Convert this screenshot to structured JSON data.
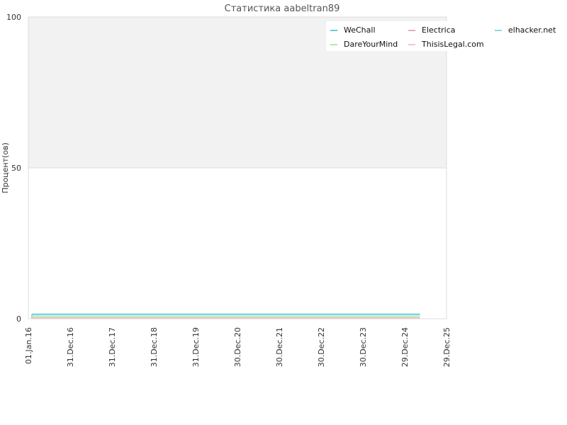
{
  "chart_data": {
    "type": "line",
    "title": "Статистика aabeltran89",
    "ylabel": "Процент(ов)",
    "xlabel": "",
    "ylim": [
      0,
      100
    ],
    "y_ticks": [
      "0",
      "50",
      "100"
    ],
    "x_ticks": [
      "01.Jan.16",
      "31.Dec.16",
      "31.Dec.17",
      "31.Dec.18",
      "31.Dec.19",
      "30.Dec.20",
      "30.Dec.21",
      "30.Dec.22",
      "30.Dec.23",
      "29.Dec.24",
      "29.Dec.25"
    ],
    "x_range": [
      "01.Jan.16",
      "29.Dec.25"
    ],
    "grid": true,
    "legend_position": "top-right",
    "band_above_50_color": "#f2f2f2",
    "series": [
      {
        "name": "WeChall",
        "color": "#66cccc",
        "x": [
          "01.Jan.16",
          "10.Apr.25"
        ],
        "y": [
          1.5,
          1.5
        ]
      },
      {
        "name": "Electrica",
        "color": "#e6a8c8",
        "x": [
          "01.Jan.16",
          "10.Apr.25"
        ],
        "y": [
          0.3,
          0.3
        ]
      },
      {
        "name": "elhacker.net",
        "color": "#88dddd",
        "x": [
          "01.Jan.16",
          "10.Apr.25"
        ],
        "y": [
          1.3,
          1.3
        ]
      },
      {
        "name": "DareYourMind",
        "color": "#b8e6a0",
        "x": [
          "01.Jan.16",
          "10.Apr.25"
        ],
        "y": [
          0.6,
          0.6
        ]
      },
      {
        "name": "ThisisLegal.com",
        "color": "#f2c4d0",
        "x": [
          "01.Jan.16",
          "10.Apr.25"
        ],
        "y": [
          0.2,
          0.2
        ]
      }
    ]
  }
}
